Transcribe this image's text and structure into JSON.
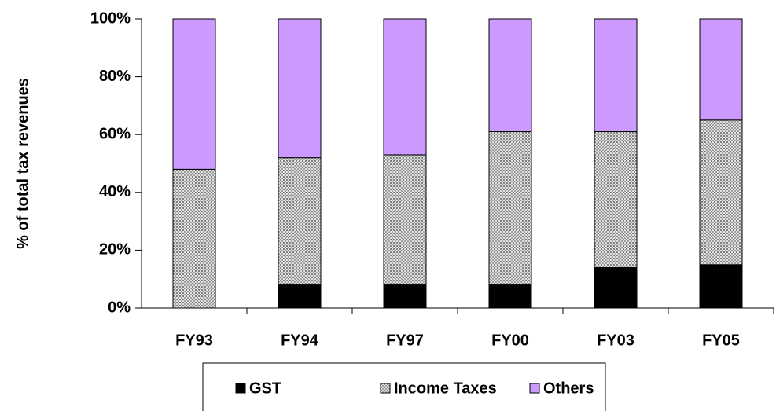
{
  "chart_data": {
    "type": "stacked_bar",
    "y_label": "% of total tax revenues",
    "categories": [
      "FY93",
      "FY94",
      "FY97",
      "FY00",
      "FY03",
      "FY05"
    ],
    "series": [
      {
        "name": "GST",
        "color": "#000000",
        "values": [
          0,
          8,
          8,
          8,
          14,
          15
        ]
      },
      {
        "name": "Income Taxes",
        "color": "#c0c0c0",
        "values": [
          48,
          44,
          45,
          53,
          47,
          50
        ]
      },
      {
        "name": "Others",
        "color": "#cc99ff",
        "values": [
          52,
          48,
          47,
          39,
          39,
          35
        ]
      }
    ],
    "ylim": [
      0,
      100
    ],
    "yticks": [
      {
        "value": 0,
        "label": "0%"
      },
      {
        "value": 20,
        "label": "20%"
      },
      {
        "value": 40,
        "label": "40%"
      },
      {
        "value": 60,
        "label": "60%"
      },
      {
        "value": 80,
        "label": "80%"
      },
      {
        "value": 100,
        "label": "100%"
      }
    ],
    "legend": "bottom"
  }
}
